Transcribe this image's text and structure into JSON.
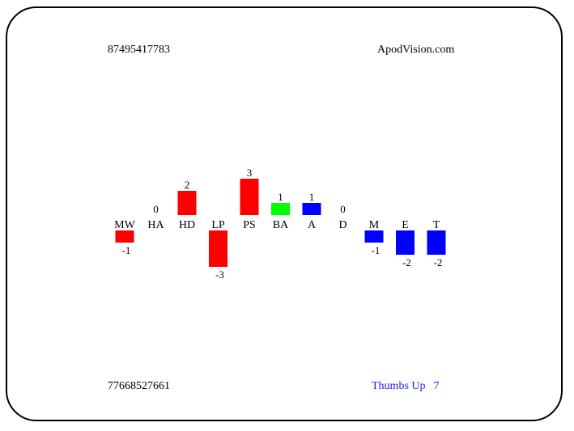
{
  "header": {
    "left_id": "87495417783",
    "site": "ApodVision.com"
  },
  "footer": {
    "left_id": "77668527661",
    "status_label": "Thumbs Up",
    "status_value": "7",
    "status_color": "#1a1aff"
  },
  "chart_data": {
    "type": "bar",
    "categories": [
      "MW",
      "HA",
      "HD",
      "LP",
      "PS",
      "BA",
      "A",
      "D",
      "M",
      "E",
      "T"
    ],
    "values": [
      -1,
      0,
      2,
      -3,
      3,
      1,
      1,
      0,
      -1,
      -2,
      -2
    ],
    "colors": [
      "#ff0000",
      "#ff0000",
      "#ff0000",
      "#ff0000",
      "#ff0000",
      "#00ff00",
      "#0000ff",
      "#0000ff",
      "#0000ff",
      "#0000ff",
      "#0000ff"
    ],
    "title": "",
    "xlabel": "",
    "ylabel": "",
    "ylim": [
      -3,
      3
    ],
    "grid": false,
    "legend": "none"
  }
}
